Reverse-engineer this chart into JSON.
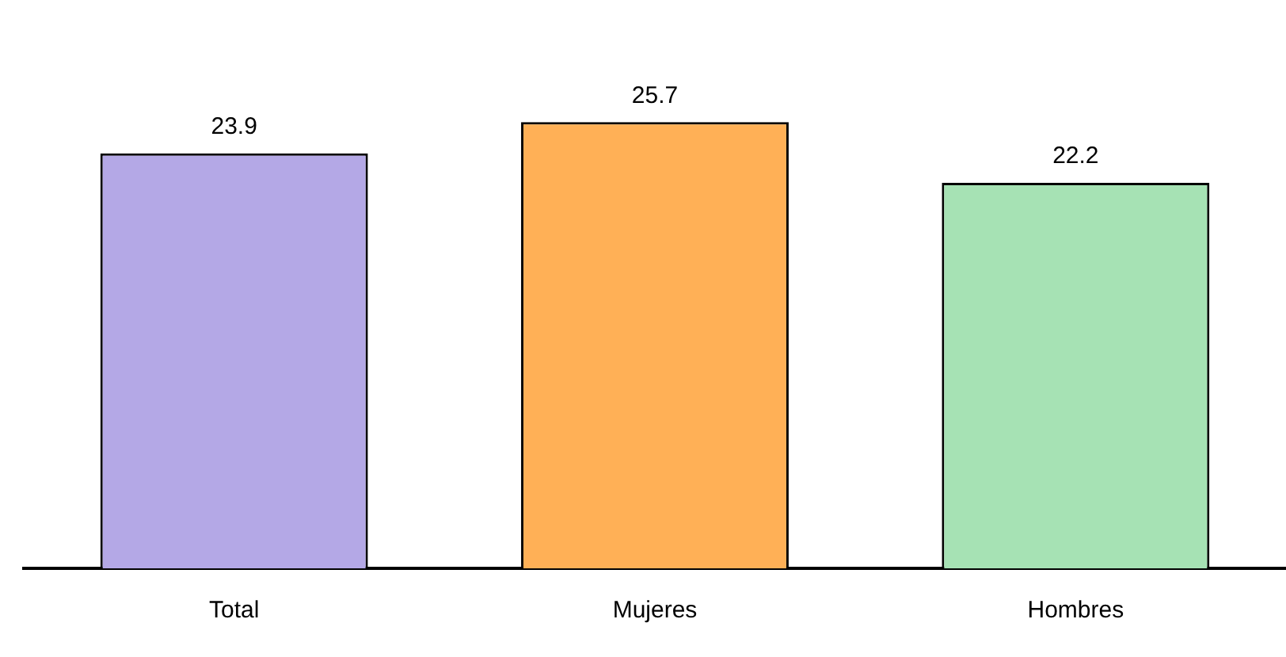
{
  "chart_data": {
    "type": "bar",
    "categories": [
      "Total",
      "Mujeres",
      "Hombres"
    ],
    "values": [
      23.9,
      25.7,
      22.2
    ],
    "colors": [
      "#b4a8e6",
      "#ffb056",
      "#a6e2b4"
    ],
    "tick_labels": "x",
    "data_labels": true,
    "grid": false,
    "legend": false
  }
}
